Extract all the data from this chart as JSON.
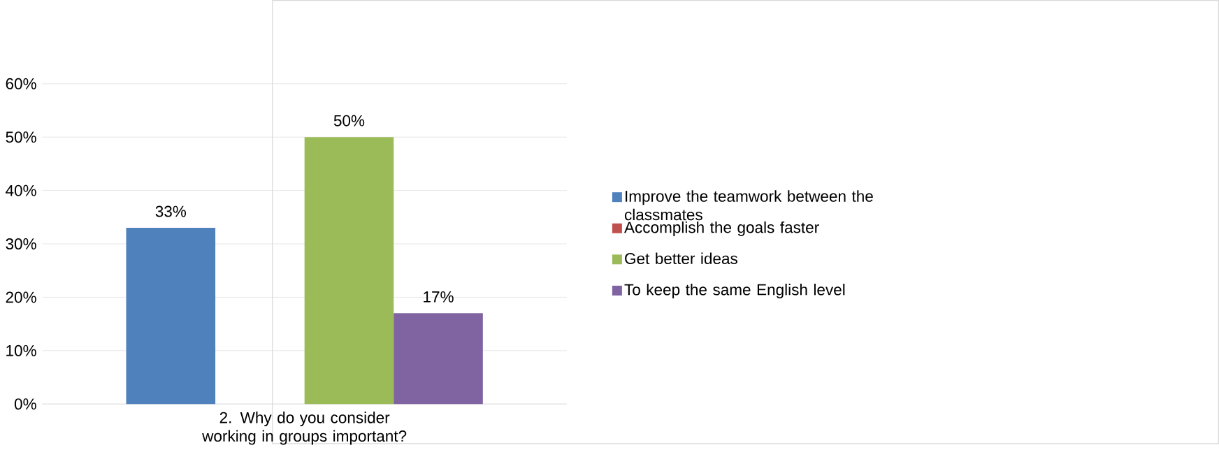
{
  "chart_data": {
    "type": "bar",
    "categories": [
      "2. Why do you consider working in groups important?"
    ],
    "series": [
      {
        "name": "Improve the teamwork between the classmates",
        "color": "#4f81bd",
        "values": [
          33
        ],
        "value_labels": [
          "33%"
        ]
      },
      {
        "name": "Accomplish the goals faster",
        "color": "#c0504d",
        "values": [
          0
        ],
        "value_labels": [
          null
        ]
      },
      {
        "name": "Get better ideas",
        "color": "#9bbb59",
        "values": [
          50
        ],
        "value_labels": [
          "50%"
        ]
      },
      {
        "name": "To keep the same English level",
        "color": "#8064a2",
        "values": [
          17
        ],
        "value_labels": [
          "17%"
        ]
      }
    ],
    "ylim": [
      0,
      60
    ],
    "yticks": [
      {
        "value": 0,
        "label": "0%"
      },
      {
        "value": 10,
        "label": "10%"
      },
      {
        "value": 20,
        "label": "20%"
      },
      {
        "value": 30,
        "label": "30%"
      },
      {
        "value": 40,
        "label": "40%"
      },
      {
        "value": 50,
        "label": "50%"
      },
      {
        "value": 60,
        "label": "60%"
      }
    ],
    "grid": "y",
    "legend": "right"
  }
}
